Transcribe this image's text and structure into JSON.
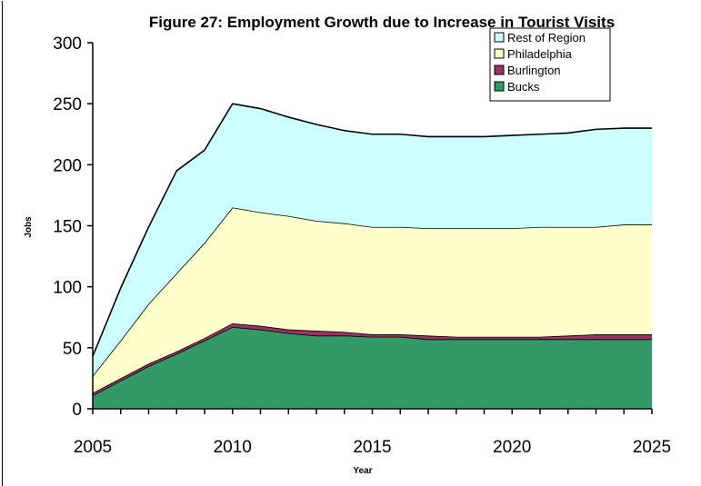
{
  "chart_data": {
    "type": "area",
    "stacked": true,
    "title": "Figure 27: Employment Growth due to Increase in Tourist Visits",
    "xlabel": "Year",
    "ylabel": "Jobs",
    "xlim": [
      2005,
      2025
    ],
    "ylim": [
      0,
      300
    ],
    "x_ticks": [
      2005,
      2010,
      2015,
      2020,
      2025
    ],
    "y_ticks": [
      0,
      50,
      100,
      150,
      200,
      250,
      300
    ],
    "legend_position": "top-right",
    "x": [
      2005,
      2006,
      2007,
      2008,
      2009,
      2010,
      2011,
      2012,
      2013,
      2014,
      2015,
      2016,
      2017,
      2018,
      2019,
      2020,
      2021,
      2022,
      2023,
      2024,
      2025
    ],
    "series": [
      {
        "name": "Bucks",
        "color": "#339966",
        "values": [
          11,
          23,
          35,
          45,
          56,
          67,
          65,
          62,
          60,
          60,
          59,
          59,
          57,
          57,
          57,
          57,
          57,
          57,
          57,
          57,
          57
        ]
      },
      {
        "name": "Burlington",
        "color": "#993366",
        "values": [
          2,
          2,
          2,
          2,
          2,
          3,
          3,
          3,
          4,
          3,
          2,
          2,
          3,
          2,
          2,
          2,
          2,
          3,
          4,
          4,
          4
        ]
      },
      {
        "name": "Philadelphia",
        "color": "#FFFFCC",
        "values": [
          14,
          31,
          49,
          64,
          78,
          95,
          93,
          93,
          90,
          89,
          88,
          88,
          88,
          89,
          89,
          89,
          90,
          89,
          88,
          90,
          90
        ]
      },
      {
        "name": "Rest of Region",
        "color": "#CCFFFF",
        "values": [
          16,
          43,
          63,
          84,
          76,
          85,
          85,
          81,
          79,
          76,
          76,
          76,
          75,
          75,
          75,
          76,
          76,
          77,
          80,
          79,
          79
        ]
      }
    ]
  }
}
